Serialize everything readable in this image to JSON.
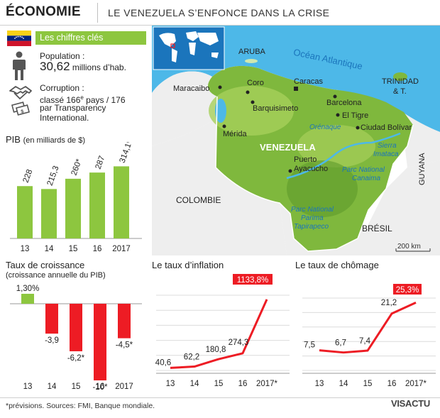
{
  "header": {
    "title": "ÉCONOMIE",
    "subtitle": "LE VENEZUELA S’ENFONCE DANS LA CRISE"
  },
  "key_figures": {
    "label": "Les chiffres clés",
    "population_label": "Population :",
    "population_value": "30,62",
    "population_unit": " millions d’hab.",
    "corruption_label": "Corruption :",
    "corruption_rank_pre": "classé 166",
    "corruption_rank_sup": "e",
    "corruption_rank_post": " pays / 176",
    "corruption_line2": "par Transparency",
    "corruption_line3": "International."
  },
  "map": {
    "ocean": "Océan Atlantique",
    "aruba": "ARUBA",
    "trinidad1": "TRINIDAD",
    "trinidad2": "& T.",
    "guyana": "GUYANA",
    "colombie": "COLOMBIE",
    "bresil": "BRÉSIL",
    "country": "VENEZUELA",
    "river": "Orénaque",
    "sierra1": "Sierra",
    "sierra2": "Imataca",
    "canaima1": "Parc National",
    "canaima2": "Canaima",
    "parima1": "Parc National",
    "parima2": "Parima",
    "parima3": "Tapirapeco",
    "scale": "200 km",
    "cities": [
      {
        "name": "Maracaibo"
      },
      {
        "name": "Coro"
      },
      {
        "name": "Caracas"
      },
      {
        "name": "Barcelona"
      },
      {
        "name": "Barquisimeto"
      },
      {
        "name": "El Tigre"
      },
      {
        "name": "Ciudad Bolívar"
      },
      {
        "name": "Mérida"
      },
      {
        "name": "Puerto"
      },
      {
        "name": "Ayacucho"
      }
    ]
  },
  "footer": "*prévisions. Sources: FMI, Banque mondiale.",
  "logo": "VISACTU",
  "colors": {
    "green": "#8dc63f",
    "red": "#ed1c24",
    "ocean": "#4db8e8",
    "map_green": "#7fb83d"
  },
  "chart_data": [
    {
      "type": "bar",
      "title": "PIB",
      "title_suffix": "(en milliards de $)",
      "categories": [
        "13",
        "14",
        "15",
        "16",
        "2017"
      ],
      "values": [
        228,
        215.3,
        260,
        287,
        314.1
      ],
      "labels": [
        "228",
        "215,3",
        "260*",
        "287",
        "314,1*"
      ],
      "ylim": [
        0,
        340
      ]
    },
    {
      "type": "bar",
      "title": "Taux de croissance",
      "subtitle": "(croissance annuelle du PIB)",
      "categories": [
        "13",
        "14",
        "15",
        "16",
        "2017"
      ],
      "values": [
        1.3,
        -3.9,
        -6.2,
        -10,
        -4.5
      ],
      "labels": [
        "1,30%",
        "-3,9",
        "-6,2*",
        "-10*",
        "-4,5*"
      ],
      "ylim": [
        -10,
        1.3
      ]
    },
    {
      "type": "line",
      "title": "Le taux d’inflation",
      "categories": [
        "13",
        "14",
        "15",
        "16",
        "2017*"
      ],
      "values": [
        40.6,
        62.2,
        180.8,
        274.3,
        1133.8
      ],
      "labels": [
        "40,6",
        "62,2",
        "180,8",
        "274,3",
        "1133,8%"
      ],
      "ylim": [
        0,
        1200
      ]
    },
    {
      "type": "line",
      "title": "Le taux de chômage",
      "categories": [
        "13",
        "14",
        "15",
        "16",
        "2017*"
      ],
      "values": [
        7.5,
        6.7,
        7.4,
        21.2,
        25.3
      ],
      "labels": [
        "7,5",
        "6,7",
        "7,4",
        "21,2",
        "25,3%"
      ],
      "ylim": [
        0,
        27
      ]
    }
  ]
}
